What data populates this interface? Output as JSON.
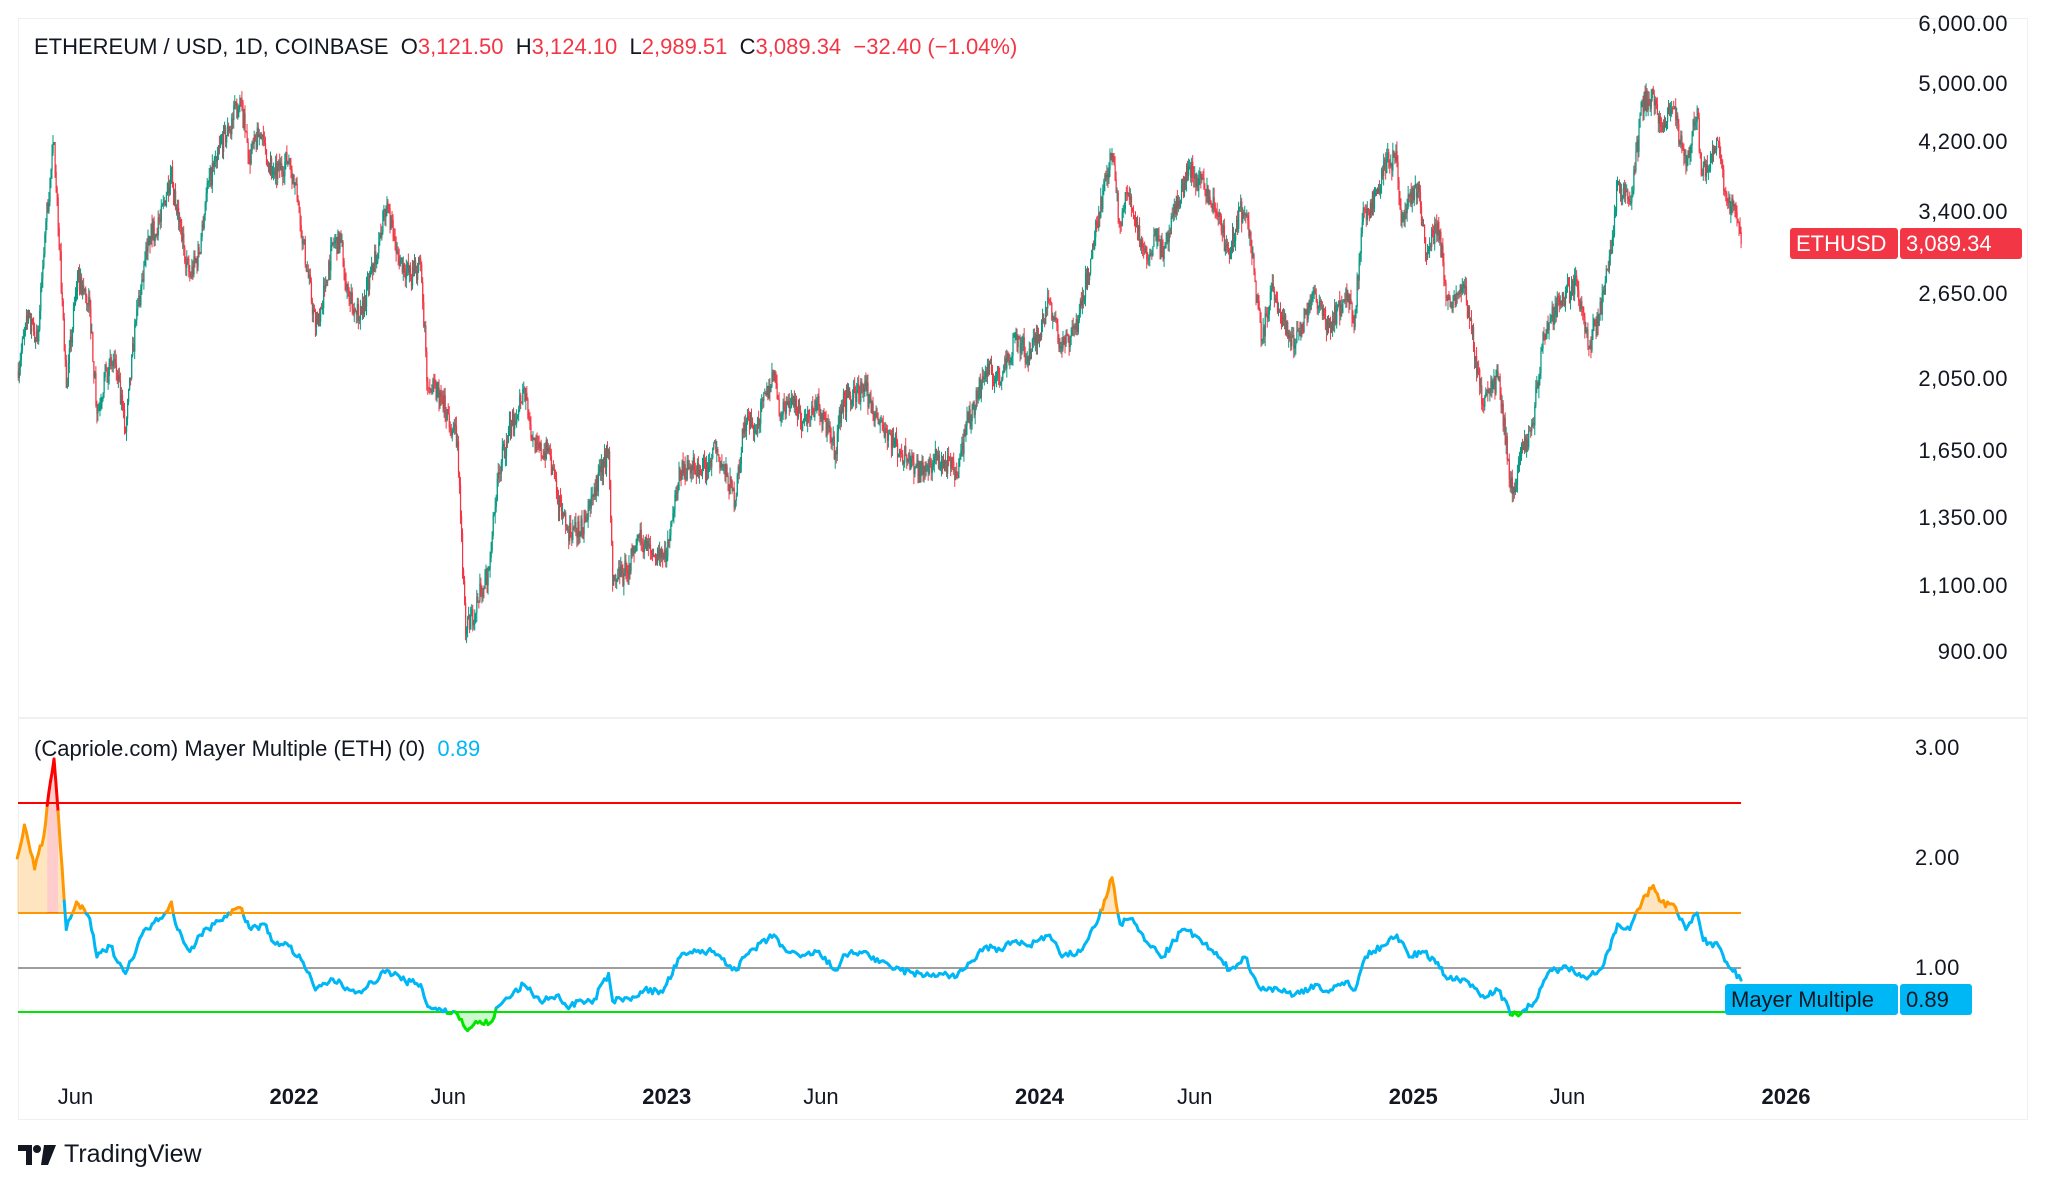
{
  "header": {
    "symbol": "ETHEREUM / USD, 1D, COINBASE",
    "open_label": "O",
    "open": "3,121.50",
    "high_label": "H",
    "high": "3,124.10",
    "low_label": "L",
    "low": "2,989.51",
    "close_label": "C",
    "close": "3,089.34",
    "change": "−32.40 (−1.04%)"
  },
  "price_label": {
    "name": "ETHUSD",
    "value": "3,089.34"
  },
  "indicator": {
    "title": "(Capriole.com) Mayer Multiple (ETH) (0)",
    "value": "0.89",
    "label_name": "Mayer Multiple",
    "label_value": "0.89"
  },
  "branding": {
    "name": "TradingView"
  },
  "colors": {
    "up": "#089981",
    "down": "#f23645",
    "mayer": "#00b7f5",
    "overbought": "#ff9800",
    "extreme": "#ff0000",
    "oversold": "#00e600",
    "mean": "#9e9e9e"
  },
  "chart_data": [
    {
      "type": "candlestick",
      "title": "ETHEREUM / USD, 1D, COINBASE",
      "yscale": "log",
      "ylim": [
        850,
        6000
      ],
      "yticks": [
        "6,000.00",
        "5,000.00",
        "4,200.00",
        "3,400.00",
        "2,650.00",
        "2,050.00",
        "1,650.00",
        "1,350.00",
        "1,100.00",
        "900.00"
      ],
      "ytick_values": [
        6000,
        5000,
        4200,
        3400,
        2650,
        2050,
        1650,
        1350,
        1100,
        900
      ],
      "xticks": [
        {
          "label": "Jun",
          "date": "2021-06-01"
        },
        {
          "label": "2022",
          "date": "2022-01-01",
          "bold": true
        },
        {
          "label": "Jun",
          "date": "2022-06-01"
        },
        {
          "label": "2023",
          "date": "2023-01-01",
          "bold": true
        },
        {
          "label": "Jun",
          "date": "2023-06-01"
        },
        {
          "label": "2024",
          "date": "2024-01-01",
          "bold": true
        },
        {
          "label": "Jun",
          "date": "2024-06-01"
        },
        {
          "label": "2025",
          "date": "2025-01-01",
          "bold": true
        },
        {
          "label": "Jun",
          "date": "2025-06-01"
        },
        {
          "label": "2026",
          "date": "2026-01-01",
          "bold": true
        }
      ],
      "grid": false,
      "closes": [
        [
          "2021-04-05",
          2100
        ],
        [
          "2021-04-15",
          2450
        ],
        [
          "2021-04-25",
          2300
        ],
        [
          "2021-05-03",
          3300
        ],
        [
          "2021-05-11",
          4200
        ],
        [
          "2021-05-19",
          2600
        ],
        [
          "2021-05-23",
          2000
        ],
        [
          "2021-06-03",
          2800
        ],
        [
          "2021-06-15",
          2550
        ],
        [
          "2021-06-22",
          1850
        ],
        [
          "2021-07-01",
          2100
        ],
        [
          "2021-07-10",
          2150
        ],
        [
          "2021-07-20",
          1750
        ],
        [
          "2021-07-30",
          2450
        ],
        [
          "2021-08-12",
          3150
        ],
        [
          "2021-08-23",
          3300
        ],
        [
          "2021-09-03",
          3900
        ],
        [
          "2021-09-07",
          3450
        ],
        [
          "2021-09-21",
          2800
        ],
        [
          "2021-09-30",
          3000
        ],
        [
          "2021-10-07",
          3600
        ],
        [
          "2021-10-20",
          4150
        ],
        [
          "2021-10-29",
          4350
        ],
        [
          "2021-11-09",
          4800
        ],
        [
          "2021-11-18",
          4000
        ],
        [
          "2021-11-28",
          4300
        ],
        [
          "2021-12-04",
          4100
        ],
        [
          "2021-12-13",
          3800
        ],
        [
          "2021-12-27",
          4000
        ],
        [
          "2022-01-05",
          3500
        ],
        [
          "2022-01-10",
          3100
        ],
        [
          "2022-01-22",
          2400
        ],
        [
          "2022-01-31",
          2700
        ],
        [
          "2022-02-08",
          3100
        ],
        [
          "2022-02-16",
          3100
        ],
        [
          "2022-02-24",
          2600
        ],
        [
          "2022-03-08",
          2500
        ],
        [
          "2022-03-20",
          2900
        ],
        [
          "2022-04-02",
          3500
        ],
        [
          "2022-04-11",
          3000
        ],
        [
          "2022-04-25",
          2800
        ],
        [
          "2022-05-05",
          2900
        ],
        [
          "2022-05-12",
          2000
        ],
        [
          "2022-05-25",
          1950
        ],
        [
          "2022-06-10",
          1700
        ],
        [
          "2022-06-18",
          950
        ],
        [
          "2022-06-30",
          1050
        ],
        [
          "2022-07-10",
          1150
        ],
        [
          "2022-07-20",
          1550
        ],
        [
          "2022-07-28",
          1700
        ],
        [
          "2022-08-14",
          2000
        ],
        [
          "2022-08-25",
          1650
        ],
        [
          "2022-09-08",
          1650
        ],
        [
          "2022-09-15",
          1450
        ],
        [
          "2022-09-25",
          1300
        ],
        [
          "2022-10-10",
          1300
        ],
        [
          "2022-10-28",
          1550
        ],
        [
          "2022-11-05",
          1650
        ],
        [
          "2022-11-09",
          1100
        ],
        [
          "2022-11-22",
          1150
        ],
        [
          "2022-12-05",
          1270
        ],
        [
          "2022-12-20",
          1200
        ],
        [
          "2023-01-01",
          1200
        ],
        [
          "2023-01-14",
          1550
        ],
        [
          "2023-01-25",
          1580
        ],
        [
          "2023-02-10",
          1550
        ],
        [
          "2023-02-16",
          1690
        ],
        [
          "2023-03-09",
          1420
        ],
        [
          "2023-03-18",
          1800
        ],
        [
          "2023-03-28",
          1750
        ],
        [
          "2023-04-16",
          2100
        ],
        [
          "2023-04-21",
          1850
        ],
        [
          "2023-05-05",
          1950
        ],
        [
          "2023-05-12",
          1800
        ],
        [
          "2023-05-28",
          1900
        ],
        [
          "2023-06-15",
          1650
        ],
        [
          "2023-06-21",
          1900
        ],
        [
          "2023-07-13",
          2000
        ],
        [
          "2023-07-25",
          1850
        ],
        [
          "2023-08-17",
          1650
        ],
        [
          "2023-09-11",
          1550
        ],
        [
          "2023-09-20",
          1620
        ],
        [
          "2023-10-12",
          1550
        ],
        [
          "2023-10-23",
          1800
        ],
        [
          "2023-11-09",
          2100
        ],
        [
          "2023-11-25",
          2050
        ],
        [
          "2023-12-09",
          2350
        ],
        [
          "2023-12-20",
          2200
        ],
        [
          "2024-01-01",
          2350
        ],
        [
          "2024-01-11",
          2600
        ],
        [
          "2024-01-23",
          2250
        ],
        [
          "2024-02-08",
          2450
        ],
        [
          "2024-02-20",
          2950
        ],
        [
          "2024-02-28",
          3400
        ],
        [
          "2024-03-12",
          4050
        ],
        [
          "2024-03-19",
          3300
        ],
        [
          "2024-03-28",
          3600
        ],
        [
          "2024-04-13",
          3000
        ],
        [
          "2024-04-25",
          3150
        ],
        [
          "2024-05-01",
          2950
        ],
        [
          "2024-05-20",
          3700
        ],
        [
          "2024-05-27",
          3900
        ],
        [
          "2024-06-10",
          3650
        ],
        [
          "2024-06-24",
          3350
        ],
        [
          "2024-07-05",
          2950
        ],
        [
          "2024-07-15",
          3450
        ],
        [
          "2024-07-25",
          3200
        ],
        [
          "2024-08-05",
          2300
        ],
        [
          "2024-08-15",
          2700
        ],
        [
          "2024-08-27",
          2450
        ],
        [
          "2024-09-06",
          2250
        ],
        [
          "2024-09-20",
          2550
        ],
        [
          "2024-09-27",
          2650
        ],
        [
          "2024-10-10",
          2400
        ],
        [
          "2024-10-29",
          2650
        ],
        [
          "2024-11-04",
          2400
        ],
        [
          "2024-11-12",
          3300
        ],
        [
          "2024-11-26",
          3600
        ],
        [
          "2024-12-06",
          4000
        ],
        [
          "2024-12-16",
          3950
        ],
        [
          "2024-12-20",
          3300
        ],
        [
          "2025-01-06",
          3700
        ],
        [
          "2025-01-13",
          3000
        ],
        [
          "2025-01-25",
          3300
        ],
        [
          "2025-02-03",
          2600
        ],
        [
          "2025-02-20",
          2700
        ],
        [
          "2025-03-03",
          2200
        ],
        [
          "2025-03-10",
          1900
        ],
        [
          "2025-03-25",
          2050
        ],
        [
          "2025-04-08",
          1450
        ],
        [
          "2025-04-15",
          1600
        ],
        [
          "2025-04-28",
          1800
        ],
        [
          "2025-05-09",
          2350
        ],
        [
          "2025-05-25",
          2600
        ],
        [
          "2025-06-10",
          2750
        ],
        [
          "2025-06-22",
          2250
        ],
        [
          "2025-07-02",
          2500
        ],
        [
          "2025-07-14",
          3000
        ],
        [
          "2025-07-20",
          3700
        ],
        [
          "2025-08-02",
          3500
        ],
        [
          "2025-08-13",
          4700
        ],
        [
          "2025-08-24",
          4850
        ],
        [
          "2025-09-01",
          4400
        ],
        [
          "2025-09-12",
          4650
        ],
        [
          "2025-09-25",
          3900
        ],
        [
          "2025-10-06",
          4650
        ],
        [
          "2025-10-10",
          3800
        ],
        [
          "2025-10-27",
          4200
        ],
        [
          "2025-11-04",
          3500
        ],
        [
          "2025-11-13",
          3400
        ],
        [
          "2025-11-18",
          3089.34
        ]
      ]
    },
    {
      "type": "line",
      "title": "(Capriole.com) Mayer Multiple (ETH) (0)",
      "ylim": [
        0.3,
        3.2
      ],
      "yticks": [
        "3.00",
        "2.00",
        "1.00"
      ],
      "ytick_values": [
        3,
        2,
        1
      ],
      "thresholds": [
        {
          "value": 2.5,
          "color": "#ff0000"
        },
        {
          "value": 1.5,
          "color": "#ff9800"
        },
        {
          "value": 1.0,
          "color": "#9e9e9e"
        },
        {
          "value": 0.6,
          "color": "#00e600"
        }
      ],
      "points": [
        [
          "2021-04-05",
          2.0
        ],
        [
          "2021-04-12",
          2.3
        ],
        [
          "2021-04-22",
          1.9
        ],
        [
          "2021-05-01",
          2.2
        ],
        [
          "2021-05-06",
          2.6
        ],
        [
          "2021-05-11",
          2.9
        ],
        [
          "2021-05-19",
          1.9
        ],
        [
          "2021-05-23",
          1.35
        ],
        [
          "2021-06-02",
          1.6
        ],
        [
          "2021-06-15",
          1.45
        ],
        [
          "2021-06-22",
          1.1
        ],
        [
          "2021-07-05",
          1.2
        ],
        [
          "2021-07-20",
          0.95
        ],
        [
          "2021-08-05",
          1.3
        ],
        [
          "2021-08-15",
          1.4
        ],
        [
          "2021-08-23",
          1.45
        ],
        [
          "2021-09-03",
          1.6
        ],
        [
          "2021-09-07",
          1.4
        ],
        [
          "2021-09-21",
          1.15
        ],
        [
          "2021-10-01",
          1.3
        ],
        [
          "2021-10-15",
          1.4
        ],
        [
          "2021-10-29",
          1.5
        ],
        [
          "2021-11-09",
          1.55
        ],
        [
          "2021-11-20",
          1.35
        ],
        [
          "2021-12-03",
          1.4
        ],
        [
          "2021-12-10",
          1.25
        ],
        [
          "2021-12-27",
          1.2
        ],
        [
          "2022-01-10",
          1.05
        ],
        [
          "2022-01-22",
          0.8
        ],
        [
          "2022-02-08",
          0.9
        ],
        [
          "2022-02-24",
          0.8
        ],
        [
          "2022-03-10",
          0.8
        ],
        [
          "2022-04-02",
          0.98
        ],
        [
          "2022-04-20",
          0.88
        ],
        [
          "2022-05-05",
          0.85
        ],
        [
          "2022-05-12",
          0.65
        ],
        [
          "2022-05-25",
          0.62
        ],
        [
          "2022-06-10",
          0.58
        ],
        [
          "2022-06-18",
          0.45
        ],
        [
          "2022-06-30",
          0.5
        ],
        [
          "2022-07-12",
          0.5
        ],
        [
          "2022-07-20",
          0.65
        ],
        [
          "2022-08-14",
          0.85
        ],
        [
          "2022-08-30",
          0.7
        ],
        [
          "2022-09-15",
          0.75
        ],
        [
          "2022-09-25",
          0.65
        ],
        [
          "2022-10-10",
          0.7
        ],
        [
          "2022-10-20",
          0.68
        ],
        [
          "2022-11-05",
          0.95
        ],
        [
          "2022-11-09",
          0.7
        ],
        [
          "2022-11-25",
          0.72
        ],
        [
          "2022-12-10",
          0.8
        ],
        [
          "2022-12-28",
          0.78
        ],
        [
          "2023-01-14",
          1.1
        ],
        [
          "2023-01-30",
          1.15
        ],
        [
          "2023-02-16",
          1.15
        ],
        [
          "2023-03-10",
          0.98
        ],
        [
          "2023-03-20",
          1.12
        ],
        [
          "2023-04-16",
          1.3
        ],
        [
          "2023-04-28",
          1.15
        ],
        [
          "2023-05-12",
          1.1
        ],
        [
          "2023-05-28",
          1.15
        ],
        [
          "2023-06-15",
          0.98
        ],
        [
          "2023-06-25",
          1.12
        ],
        [
          "2023-07-13",
          1.15
        ],
        [
          "2023-07-28",
          1.05
        ],
        [
          "2023-08-18",
          0.98
        ],
        [
          "2023-09-11",
          0.93
        ],
        [
          "2023-09-25",
          0.95
        ],
        [
          "2023-10-12",
          0.92
        ],
        [
          "2023-10-25",
          1.05
        ],
        [
          "2023-11-10",
          1.2
        ],
        [
          "2023-11-20",
          1.15
        ],
        [
          "2023-12-09",
          1.25
        ],
        [
          "2023-12-20",
          1.2
        ],
        [
          "2024-01-11",
          1.3
        ],
        [
          "2024-01-23",
          1.1
        ],
        [
          "2024-02-10",
          1.15
        ],
        [
          "2024-02-28",
          1.45
        ],
        [
          "2024-03-12",
          1.82
        ],
        [
          "2024-03-20",
          1.4
        ],
        [
          "2024-04-01",
          1.45
        ],
        [
          "2024-04-13",
          1.25
        ],
        [
          "2024-05-01",
          1.1
        ],
        [
          "2024-05-20",
          1.35
        ],
        [
          "2024-06-01",
          1.3
        ],
        [
          "2024-06-24",
          1.1
        ],
        [
          "2024-07-05",
          0.98
        ],
        [
          "2024-07-20",
          1.1
        ],
        [
          "2024-08-05",
          0.8
        ],
        [
          "2024-08-20",
          0.82
        ],
        [
          "2024-09-06",
          0.75
        ],
        [
          "2024-09-27",
          0.85
        ],
        [
          "2024-10-10",
          0.78
        ],
        [
          "2024-10-29",
          0.88
        ],
        [
          "2024-11-05",
          0.8
        ],
        [
          "2024-11-15",
          1.1
        ],
        [
          "2024-12-01",
          1.2
        ],
        [
          "2024-12-16",
          1.3
        ],
        [
          "2024-12-28",
          1.1
        ],
        [
          "2025-01-10",
          1.15
        ],
        [
          "2025-01-25",
          1.05
        ],
        [
          "2025-02-03",
          0.9
        ],
        [
          "2025-02-20",
          0.9
        ],
        [
          "2025-03-10",
          0.75
        ],
        [
          "2025-03-25",
          0.8
        ],
        [
          "2025-04-08",
          0.57
        ],
        [
          "2025-04-20",
          0.62
        ],
        [
          "2025-05-01",
          0.7
        ],
        [
          "2025-05-15",
          0.98
        ],
        [
          "2025-06-01",
          1.0
        ],
        [
          "2025-06-22",
          0.92
        ],
        [
          "2025-07-05",
          1.0
        ],
        [
          "2025-07-20",
          1.4
        ],
        [
          "2025-08-01",
          1.35
        ],
        [
          "2025-08-13",
          1.6
        ],
        [
          "2025-08-24",
          1.75
        ],
        [
          "2025-09-01",
          1.6
        ],
        [
          "2025-09-15",
          1.55
        ],
        [
          "2025-09-25",
          1.35
        ],
        [
          "2025-10-06",
          1.5
        ],
        [
          "2025-10-12",
          1.25
        ],
        [
          "2025-10-27",
          1.2
        ],
        [
          "2025-11-04",
          1.05
        ],
        [
          "2025-11-18",
          0.89
        ]
      ]
    }
  ]
}
